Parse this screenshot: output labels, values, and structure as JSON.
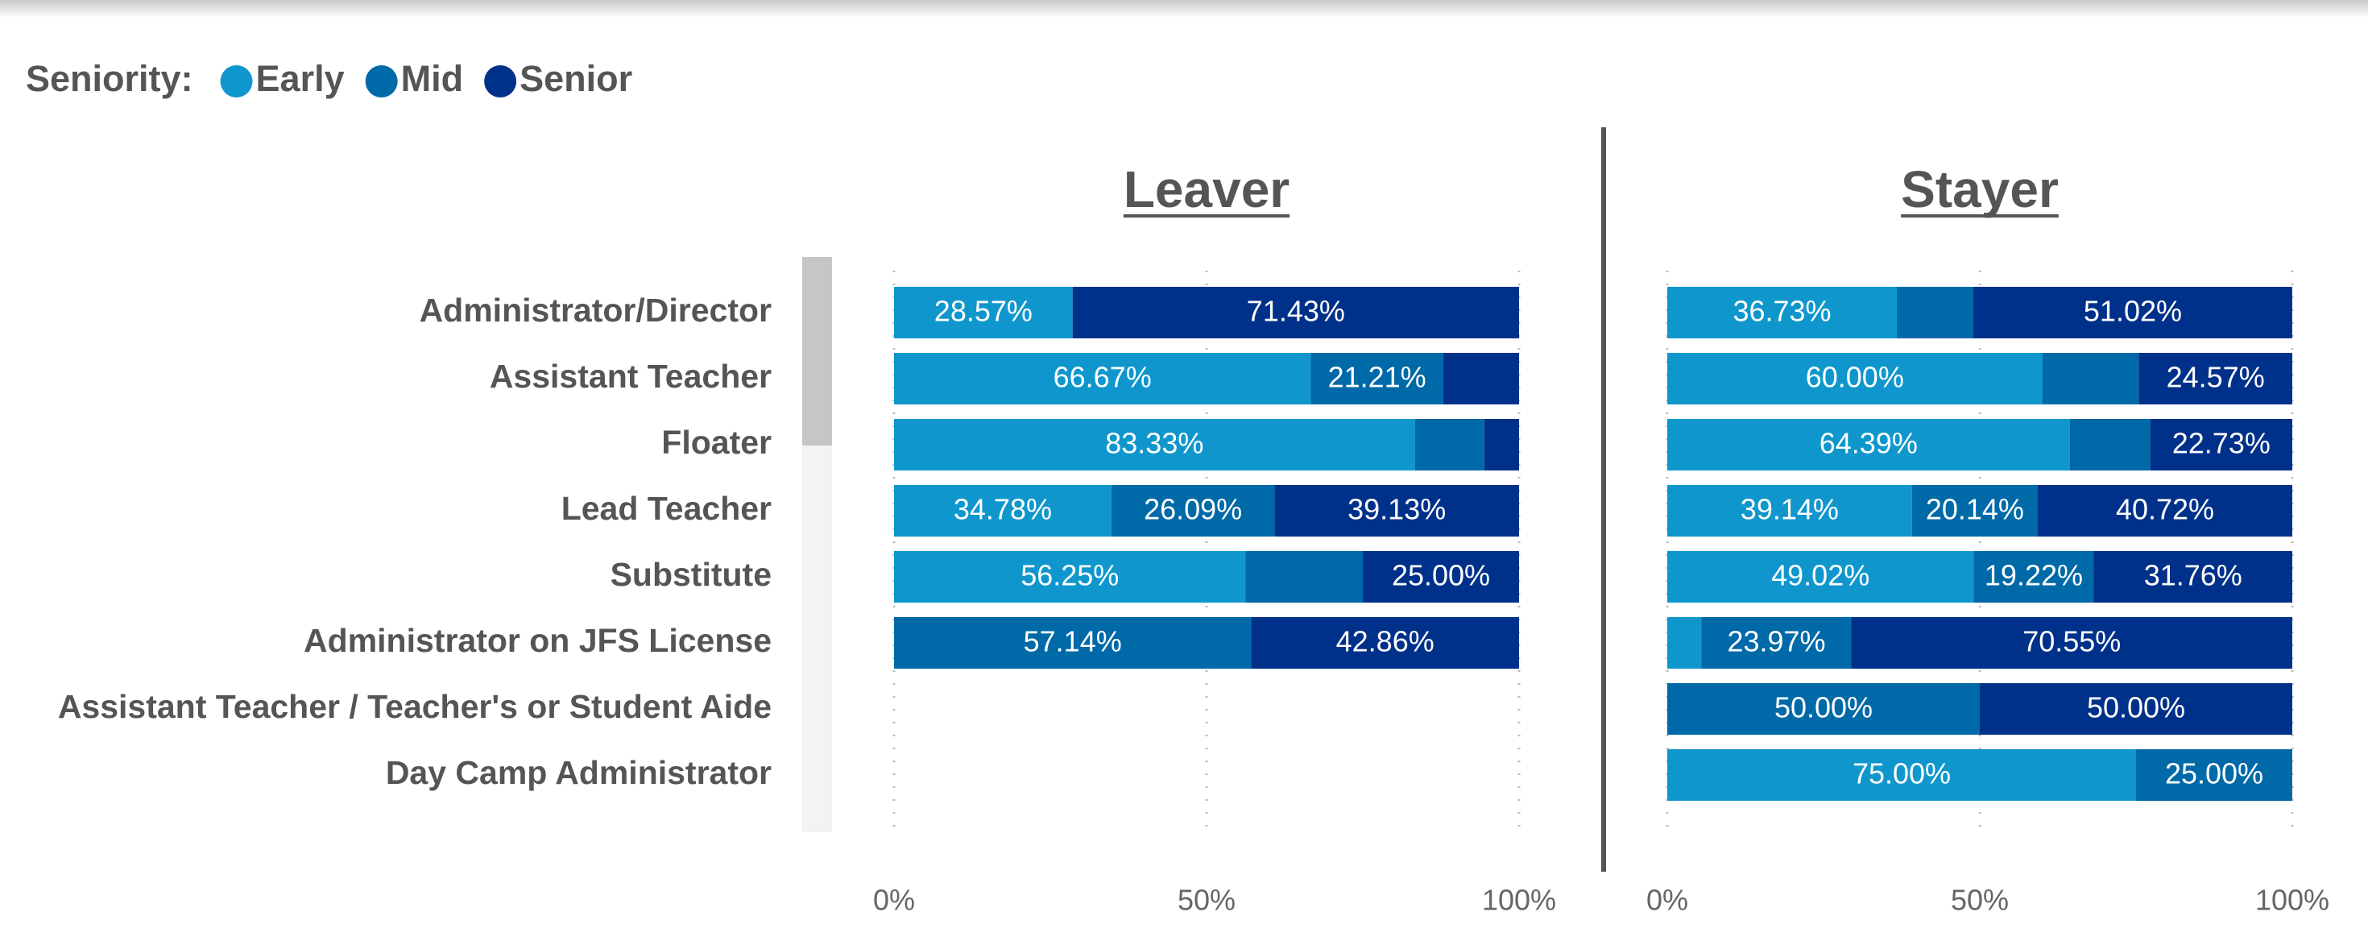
{
  "chart_data": {
    "type": "stacked_bar_100",
    "legend_title": "Seniority:",
    "legend": [
      {
        "name": "Early",
        "color": "#0f97cd"
      },
      {
        "name": "Mid",
        "color": "#0069a8"
      },
      {
        "name": "Senior",
        "color": "#00318a"
      }
    ],
    "categories": [
      "Administrator/Director",
      "Assistant Teacher",
      "Floater",
      "Lead Teacher",
      "Substitute",
      "Administrator on JFS License",
      "Assistant Teacher / Teacher's or Student Aide",
      "Day Camp Administrator"
    ],
    "panels": [
      {
        "title": "Leaver",
        "xlim": [
          0,
          100
        ],
        "xticks": [
          {
            "value": 0,
            "label": "0%"
          },
          {
            "value": 50,
            "label": "50%"
          },
          {
            "value": 100,
            "label": "100%"
          }
        ],
        "series": [
          {
            "values": [
              28.57,
              66.67,
              83.33,
              34.78,
              56.25,
              0,
              null,
              null
            ],
            "value_labels": [
              "28.57%",
              "66.67%",
              "83.33%",
              "34.78%",
              "56.25%",
              null,
              null,
              null
            ]
          },
          {
            "values": [
              0,
              21.21,
              11.11,
              26.09,
              18.75,
              57.14,
              null,
              null
            ],
            "value_labels": [
              null,
              "21.21%",
              null,
              "26.09%",
              null,
              "57.14%",
              null,
              null
            ]
          },
          {
            "values": [
              71.43,
              12.12,
              5.56,
              39.13,
              25.0,
              42.86,
              null,
              null
            ],
            "value_labels": [
              "71.43%",
              null,
              null,
              "39.13%",
              "25.00%",
              "42.86%",
              null,
              null
            ]
          }
        ]
      },
      {
        "title": "Stayer",
        "xlim": [
          0,
          100
        ],
        "xticks": [
          {
            "value": 0,
            "label": "0%"
          },
          {
            "value": 50,
            "label": "50%"
          },
          {
            "value": 100,
            "label": "100%"
          }
        ],
        "series": [
          {
            "values": [
              36.73,
              60.0,
              64.39,
              39.14,
              49.02,
              5.48,
              0,
              75.0
            ],
            "value_labels": [
              "36.73%",
              "60.00%",
              "64.39%",
              "39.14%",
              "49.02%",
              null,
              null,
              "75.00%"
            ]
          },
          {
            "values": [
              12.24,
              15.43,
              12.88,
              20.14,
              19.22,
              23.97,
              50.0,
              25.0
            ],
            "value_labels": [
              null,
              null,
              null,
              "20.14%",
              "19.22%",
              "23.97%",
              "50.00%",
              "25.00%"
            ]
          },
          {
            "values": [
              51.02,
              24.57,
              22.73,
              40.72,
              31.76,
              70.55,
              50.0,
              0
            ],
            "value_labels": [
              "51.02%",
              "24.57%",
              "22.73%",
              "40.72%",
              "31.76%",
              "70.55%",
              "50.00%",
              null
            ]
          }
        ]
      }
    ]
  }
}
